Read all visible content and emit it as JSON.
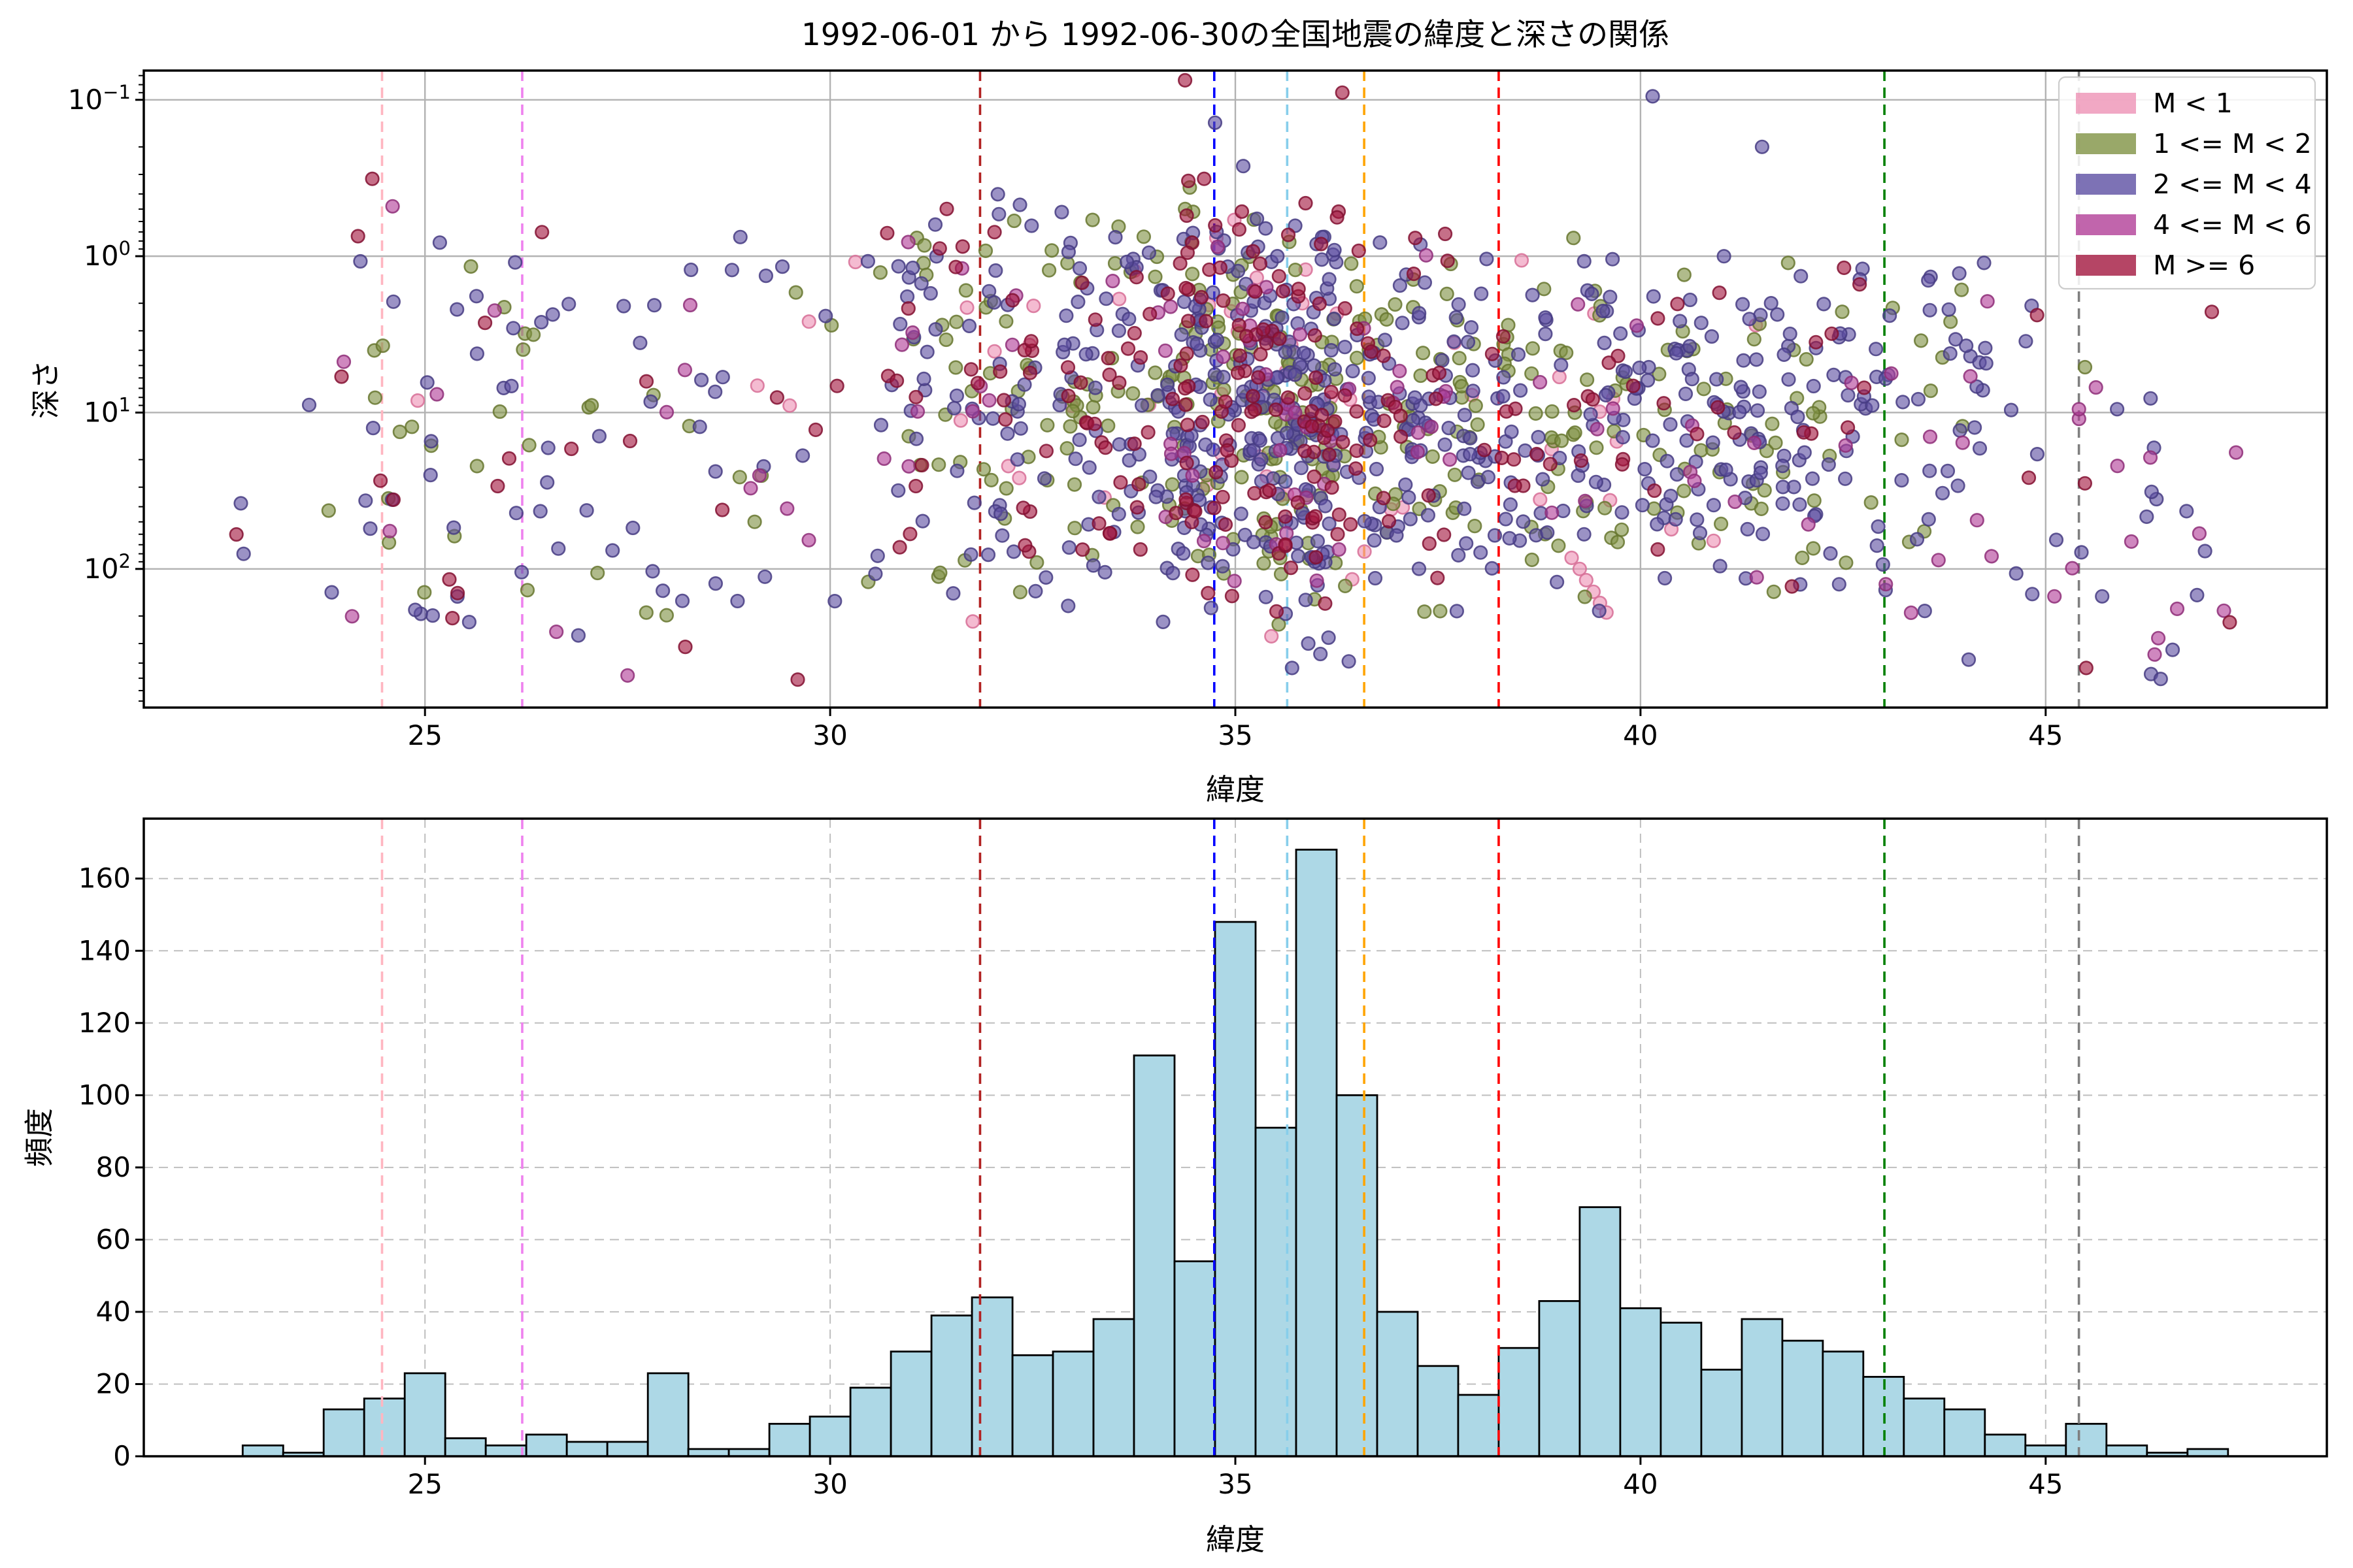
{
  "figure": {
    "title": "1992-06-01 から 1992-06-30の全国地震の緯度と深さの関係",
    "background": "#ffffff",
    "grid_color_top": "#b2b2b2",
    "grid_color_bottom": "#bfbfbf",
    "spine_color": "#000000",
    "text_color": "#000000"
  },
  "reference_lines": [
    {
      "lat": 24.47,
      "color": "#FFB6C1"
    },
    {
      "lat": 26.2,
      "color": "#EE82EE"
    },
    {
      "lat": 31.85,
      "color": "#B22222"
    },
    {
      "lat": 34.74,
      "color": "#0000FF"
    },
    {
      "lat": 35.64,
      "color": "#87CEEB"
    },
    {
      "lat": 36.59,
      "color": "#FFA500"
    },
    {
      "lat": 38.25,
      "color": "#FF0000"
    },
    {
      "lat": 43.01,
      "color": "#008000"
    },
    {
      "lat": 45.41,
      "color": "#7F7F7F"
    }
  ],
  "chart_data": [
    {
      "type": "scatter",
      "xlabel": "緯度",
      "ylabel": "深さ",
      "xlim": [
        21.53,
        48.47
      ],
      "ylim": [
        0.065,
        770
      ],
      "yscale": "log-inverted",
      "xticks": [
        25,
        30,
        35,
        40,
        45
      ],
      "ytick_decades": [
        -1,
        0,
        1,
        2
      ],
      "legend_position": "upper right",
      "classes": [
        {
          "label": "M < 1",
          "color": "#ED92B5",
          "edge": "#D76E97"
        },
        {
          "label": "1 <= M < 2",
          "color": "#7F9243",
          "edge": "#67772F"
        },
        {
          "label": "2 <= M < 4",
          "color": "#5D4FA2",
          "edge": "#473C82"
        },
        {
          "label": "4 <= M < 6",
          "color": "#B23E97",
          "edge": "#8E2E78"
        },
        {
          "label": "M >= 6",
          "color": "#A3163F",
          "edge": "#821031"
        }
      ],
      "seed": 1234,
      "marker": {
        "radius": 9.8,
        "fill_opacity": 0.62,
        "edge_opacity": 0.85,
        "edge_width": 2.6
      },
      "clusters": [
        {
          "n": 4,
          "lat": [
            22.6,
            23.6
          ],
          "log_depth": [
            0.9,
            2.15
          ],
          "dist": "uni",
          "weights": [
            0,
            0.05,
            0.6,
            0.1,
            0.25
          ]
        },
        {
          "n": 60,
          "lat": [
            23.8,
            26.3
          ],
          "log_depth": [
            -0.15,
            2.35
          ],
          "dist": "uni",
          "weights": [
            0.02,
            0.25,
            0.45,
            0.08,
            0.2
          ]
        },
        {
          "n": 37,
          "lat": [
            26.3,
            28.3
          ],
          "log_depth": [
            -0.7,
            2.5
          ],
          "dist": "uni",
          "weights": [
            0,
            0.15,
            0.55,
            0.12,
            0.18
          ]
        },
        {
          "n": 43,
          "lat": [
            28.3,
            30.8
          ],
          "log_depth": [
            -0.2,
            2.3
          ],
          "dist": "uni",
          "weights": [
            0.02,
            0.2,
            0.55,
            0.08,
            0.15
          ]
        },
        {
          "n": 140,
          "lat": [
            30.8,
            32.8
          ],
          "log_depth": [
            -0.5,
            2.4
          ],
          "dist": "tri",
          "weights": [
            0.06,
            0.26,
            0.42,
            0.06,
            0.2
          ]
        },
        {
          "n": 150,
          "lat": [
            32.8,
            34.3
          ],
          "log_depth": [
            -0.6,
            2.4
          ],
          "dist": "tri",
          "weights": [
            0.06,
            0.25,
            0.42,
            0.05,
            0.22
          ]
        },
        {
          "n": 200,
          "lat": [
            34.3,
            35.3
          ],
          "log_depth": [
            -0.8,
            2.45
          ],
          "dist": "tri",
          "weights": [
            0.07,
            0.25,
            0.41,
            0.05,
            0.22
          ]
        },
        {
          "n": 260,
          "lat": [
            35.3,
            36.3
          ],
          "log_depth": [
            -0.5,
            2.5
          ],
          "dist": "tri",
          "weights": [
            0.06,
            0.26,
            0.4,
            0.06,
            0.22
          ]
        },
        {
          "n": 165,
          "lat": [
            36.3,
            37.8
          ],
          "log_depth": [
            -0.3,
            2.45
          ],
          "dist": "tri",
          "weights": [
            0.05,
            0.25,
            0.45,
            0.05,
            0.2
          ]
        },
        {
          "n": 160,
          "lat": [
            37.8,
            39.8
          ],
          "log_depth": [
            -0.2,
            2.3
          ],
          "dist": "tri",
          "weights": [
            0.06,
            0.3,
            0.48,
            0.04,
            0.12
          ]
        },
        {
          "n": 170,
          "lat": [
            39.8,
            42.3
          ],
          "log_depth": [
            -0.1,
            2.3
          ],
          "dist": "tri",
          "weights": [
            0.04,
            0.26,
            0.55,
            0.05,
            0.1
          ]
        },
        {
          "n": 85,
          "lat": [
            42.3,
            44.3
          ],
          "log_depth": [
            0.0,
            2.3
          ],
          "dist": "uni",
          "weights": [
            0.02,
            0.2,
            0.62,
            0.08,
            0.08
          ]
        },
        {
          "n": 38,
          "lat": [
            44.3,
            47.3
          ],
          "log_depth": [
            0.3,
            2.6
          ],
          "dist": "uni",
          "weights": [
            0,
            0.08,
            0.5,
            0.3,
            0.12
          ]
        }
      ],
      "extra_points": [
        [
          34.38,
          0.075,
          4
        ],
        [
          34.42,
          0.33,
          4
        ],
        [
          34.4,
          0.55,
          4
        ],
        [
          34.41,
          0.95,
          4
        ],
        [
          34.39,
          1.6,
          4
        ],
        [
          34.42,
          2.6,
          4
        ],
        [
          34.4,
          4.2,
          4
        ],
        [
          34.38,
          7,
          4
        ],
        [
          34.41,
          12,
          4
        ],
        [
          34.4,
          21,
          4
        ],
        [
          34.39,
          36,
          4
        ],
        [
          36.32,
          0.09,
          4
        ],
        [
          40.15,
          0.095,
          2
        ],
        [
          41.5,
          0.2,
          2
        ],
        [
          34.75,
          0.14,
          2
        ],
        [
          24.35,
          0.32,
          4
        ],
        [
          24.6,
          0.48,
          3
        ],
        [
          35.9,
          300,
          2
        ],
        [
          36.05,
          350,
          2
        ],
        [
          36.15,
          275,
          2
        ],
        [
          35.7,
          430,
          2
        ],
        [
          36.4,
          390,
          2
        ],
        [
          27.5,
          480,
          3
        ],
        [
          29.6,
          510,
          4
        ],
        [
          25.4,
          150,
          2
        ],
        [
          45.5,
          430,
          4
        ],
        [
          46.3,
          470,
          2
        ],
        [
          46.42,
          505,
          2
        ],
        [
          44.05,
          380,
          2
        ],
        [
          47.2,
          185,
          3
        ],
        [
          47.35,
          18,
          3
        ],
        [
          39.15,
          85,
          0
        ],
        [
          39.25,
          100,
          0
        ],
        [
          39.33,
          118,
          0
        ],
        [
          39.42,
          140,
          0
        ],
        [
          39.5,
          165,
          0
        ],
        [
          39.58,
          190,
          0
        ]
      ]
    },
    {
      "type": "bar",
      "subtype": "histogram",
      "xlabel": "緯度",
      "ylabel": "頻度",
      "xlim": [
        21.53,
        48.47
      ],
      "ylim": [
        0,
        176.6
      ],
      "xticks": [
        25,
        30,
        35,
        40,
        45
      ],
      "yticks": [
        0,
        20,
        40,
        60,
        80,
        100,
        120,
        140,
        160
      ],
      "bin_start": 22.75,
      "bin_width": 0.5,
      "counts": [
        3,
        1,
        13,
        16,
        23,
        5,
        3,
        6,
        4,
        4,
        23,
        2,
        2,
        9,
        11,
        19,
        29,
        39,
        44,
        28,
        29,
        38,
        111,
        54,
        148,
        91,
        168,
        100,
        40,
        25,
        17,
        30,
        43,
        69,
        41,
        37,
        24,
        38,
        32,
        29,
        22,
        16,
        13,
        6,
        3,
        9,
        3,
        1,
        2
      ],
      "bar_fill": "#ADD8E6",
      "bar_edge": "#000000"
    }
  ]
}
